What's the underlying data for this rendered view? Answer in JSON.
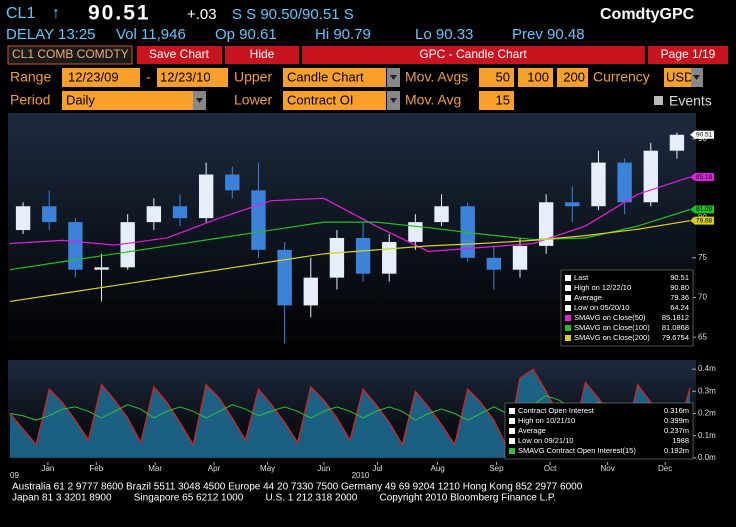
{
  "header": {
    "ticker": "CL1",
    "arrow": "↑",
    "price": "90.51",
    "change": "+.03",
    "quote": "S S 90.50/90.51 S",
    "function": "ComdtyGPC",
    "delay": "DELAY 13:25",
    "volume": "Vol 11,946",
    "open": "Op 90.61",
    "high": "Hi 90.79",
    "low": "Lo 90.33",
    "prev": "Prev 90.48"
  },
  "toolbar": {
    "security": "CL1 COMB COMDTY",
    "save": "Save Chart",
    "hide": "Hide",
    "title": "GPC - Candle Chart",
    "page": "Page 1/19"
  },
  "controls": {
    "range_label": "Range",
    "range_start": "12/23/09",
    "range_dash": "-",
    "range_end": "12/23/10",
    "upper_label": "Upper",
    "upper_value": "Candle Chart",
    "mov_avgs_label": "Mov. Avgs",
    "mov_avgs": [
      "50",
      "100",
      "200"
    ],
    "currency_label": "Currency",
    "currency": "USD",
    "period_label": "Period",
    "period": "Daily",
    "lower_label": "Lower",
    "lower_value": "Contract OI",
    "mov_avg_label": "Mov. Avg",
    "mov_avg": "15",
    "events": "Events"
  },
  "chart_data": [
    {
      "type": "candlestick",
      "xlim": [
        0,
        52
      ],
      "ylim": [
        62.75,
        93
      ],
      "yticks": [
        65,
        70,
        75,
        80,
        85,
        90
      ],
      "up_color": "#e6eefa",
      "down_color": "#3c82d8",
      "x": [
        1,
        3,
        5,
        7,
        9,
        11,
        13,
        15,
        17,
        19,
        21,
        23,
        25,
        27,
        29,
        31,
        33,
        35,
        37,
        39,
        41,
        43,
        45,
        47,
        49,
        51
      ],
      "open": [
        78.5,
        81.5,
        79.5,
        73.5,
        73.8,
        79.5,
        81.5,
        80.0,
        85.5,
        83.5,
        76.0,
        69.0,
        72.5,
        77.5,
        73.0,
        77.0,
        79.5,
        81.5,
        75.0,
        73.5,
        76.5,
        82.0,
        81.5,
        87.0,
        82.0,
        88.5
      ],
      "high": [
        82.0,
        83.5,
        80.0,
        75.5,
        80.5,
        82.5,
        83.0,
        87.0,
        86.5,
        87.0,
        77.0,
        75.0,
        78.5,
        79.5,
        78.0,
        80.5,
        83.0,
        82.0,
        76.5,
        77.5,
        83.0,
        84.0,
        88.5,
        87.5,
        89.5,
        90.8
      ],
      "low": [
        78.0,
        78.5,
        72.5,
        69.5,
        73.5,
        78.5,
        79.0,
        79.5,
        82.5,
        75.0,
        64.24,
        67.5,
        71.0,
        72.0,
        72.0,
        76.0,
        79.0,
        74.5,
        71.0,
        72.5,
        75.5,
        79.5,
        81.0,
        80.5,
        81.5,
        87.5
      ],
      "close": [
        81.5,
        79.5,
        73.5,
        73.8,
        79.5,
        81.5,
        80.0,
        85.5,
        83.5,
        76.0,
        69.0,
        72.5,
        77.5,
        73.0,
        77.0,
        79.5,
        81.5,
        75.0,
        73.5,
        76.5,
        82.0,
        81.5,
        87.0,
        82.0,
        88.5,
        90.51
      ],
      "overlays": [
        {
          "color": "#e020e0",
          "x": [
            0,
            4,
            8,
            12,
            16,
            20,
            24,
            28,
            32,
            36,
            40,
            44,
            48,
            52
          ],
          "values": [
            76.8,
            77.2,
            76.6,
            77.5,
            80.0,
            82.2,
            82.5,
            79.0,
            75.8,
            76.3,
            76.8,
            79.0,
            83.0,
            85.18
          ]
        },
        {
          "color": "#20c020",
          "x": [
            0,
            4,
            8,
            12,
            16,
            20,
            24,
            28,
            32,
            36,
            40,
            44,
            48,
            52
          ],
          "values": [
            73.5,
            74.5,
            75.5,
            76.5,
            77.5,
            78.5,
            79.5,
            79.5,
            78.8,
            78.0,
            77.3,
            77.5,
            79.0,
            81.09
          ]
        },
        {
          "color": "#d8d020",
          "x": [
            0,
            4,
            8,
            12,
            16,
            20,
            24,
            28,
            32,
            36,
            40,
            44,
            48,
            52
          ],
          "values": [
            69.5,
            70.5,
            71.5,
            72.5,
            73.5,
            74.5,
            75.5,
            76.0,
            76.5,
            76.8,
            77.2,
            77.8,
            78.6,
            79.68
          ]
        }
      ],
      "flags": [
        {
          "value": 90.51,
          "color": "#ffffff"
        },
        {
          "value": 85.18,
          "color": "#e020e0"
        },
        {
          "value": 81.09,
          "color": "#20c020"
        },
        {
          "value": 79.68,
          "color": "#d8d020"
        }
      ],
      "legend": [
        {
          "label": "Last",
          "value": "90.51",
          "color": "#ffffff"
        },
        {
          "label": "High on 12/22/10",
          "value": "90.80",
          "color": "#ffffff"
        },
        {
          "label": "Average",
          "value": "79.36",
          "color": "#ffffff"
        },
        {
          "label": "Low on 05/20/10",
          "value": "64.24",
          "color": "#ffffff"
        },
        {
          "label": "SMAVG on Close(50)",
          "value": "85.1812",
          "color": "#e020e0"
        },
        {
          "label": "SMAVG on Close(100)",
          "value": "81.0868",
          "color": "#20c020"
        },
        {
          "label": "SMAVG on Close(200)",
          "value": "79.6754",
          "color": "#d8d020"
        }
      ]
    },
    {
      "type": "area",
      "xlim": [
        0,
        52
      ],
      "ylim": [
        -0.032,
        0.432
      ],
      "yticks": [
        {
          "value": 0.4,
          "label": "0.4m"
        },
        {
          "value": 0.3,
          "label": "0.3m"
        },
        {
          "value": 0.2,
          "label": "0.2m"
        },
        {
          "value": 0.1,
          "label": "0.1m"
        },
        {
          "value": 0,
          "label": "0.0m"
        }
      ],
      "xticks": [
        {
          "value": 2.9,
          "label": "Jan"
        },
        {
          "value": 6.6,
          "label": "Feb"
        },
        {
          "value": 11.1,
          "label": "Mar"
        },
        {
          "value": 15.6,
          "label": "Apr"
        },
        {
          "value": 19.7,
          "label": "May"
        },
        {
          "value": 24,
          "label": "Jun"
        },
        {
          "value": 28.1,
          "label": "Jul"
        },
        {
          "value": 32.7,
          "label": "Aug"
        },
        {
          "value": 37.2,
          "label": "Sep"
        },
        {
          "value": 41.3,
          "label": "Oct"
        },
        {
          "value": 45.7,
          "label": "Nov"
        },
        {
          "value": 50.1,
          "label": "Dec"
        }
      ],
      "year_ticks": [
        {
          "value": 0,
          "label": "09"
        },
        {
          "value": 26.8,
          "label": "2010"
        }
      ],
      "x": [
        0,
        1,
        2,
        3,
        4,
        5,
        6,
        7,
        8,
        9,
        10,
        11,
        12,
        13,
        14,
        15,
        16,
        17,
        18,
        19,
        20,
        21,
        22,
        23,
        24,
        25,
        26,
        27,
        28,
        29,
        30,
        31,
        32,
        33,
        34,
        35,
        36,
        37,
        38,
        39,
        40,
        41,
        42,
        43,
        44,
        45,
        46,
        47,
        48,
        49,
        50,
        51,
        52
      ],
      "series": [
        {
          "color": "#1f6f95",
          "edge_color": "#e02020",
          "values": [
            0.2,
            0.13,
            0.06,
            0.31,
            0.25,
            0.17,
            0.08,
            0.33,
            0.26,
            0.18,
            0.07,
            0.32,
            0.25,
            0.16,
            0.06,
            0.33,
            0.27,
            0.18,
            0.08,
            0.31,
            0.24,
            0.16,
            0.07,
            0.32,
            0.26,
            0.18,
            0.08,
            0.31,
            0.24,
            0.16,
            0.06,
            0.3,
            0.23,
            0.15,
            0.06,
            0.31,
            0.25,
            0.17,
            0.05,
            0.36,
            0.399,
            0.3,
            0.19,
            0.08,
            0.34,
            0.27,
            0.18,
            0.07,
            0.33,
            0.25,
            0.16,
            0.1,
            0.316
          ]
        },
        {
          "color": "#30c030",
          "values": [
            0.2,
            0.19,
            0.17,
            0.19,
            0.22,
            0.23,
            0.21,
            0.18,
            0.21,
            0.24,
            0.22,
            0.18,
            0.21,
            0.23,
            0.21,
            0.18,
            0.21,
            0.24,
            0.22,
            0.19,
            0.21,
            0.23,
            0.21,
            0.18,
            0.21,
            0.23,
            0.21,
            0.18,
            0.21,
            0.23,
            0.21,
            0.17,
            0.2,
            0.22,
            0.2,
            0.17,
            0.2,
            0.23,
            0.2,
            0.18,
            0.24,
            0.28,
            0.26,
            0.22,
            0.22,
            0.25,
            0.24,
            0.2,
            0.21,
            0.24,
            0.22,
            0.19,
            0.192
          ]
        }
      ],
      "legend": [
        {
          "label": "Contract Open Interest",
          "value": "0.316m",
          "color": "#ffffff"
        },
        {
          "label": "High on 10/21/10",
          "value": "0.399m",
          "color": "#ffffff"
        },
        {
          "label": "Average",
          "value": "0.237m",
          "color": "#ffffff"
        },
        {
          "label": "Low on 09/21/10",
          "value": "1988",
          "color": "#ffffff"
        },
        {
          "label": "SMAVG Contract Open Interest(15)",
          "value": "0.192m",
          "color": "#30c030"
        }
      ]
    }
  ],
  "footer": [
    "Australia 61 2 9777 8600 Brazil 5511 3048 4500 Europe 44 20 7330 7500 Germany 49 69 9204 1210 Hong Kong 852 2977 6000",
    "Japan 81 3 3201 8900        Singapore 65 6212 1000        U.S. 1 212 318 2000        Copyright 2010 Bloomberg Finance L.P."
  ]
}
